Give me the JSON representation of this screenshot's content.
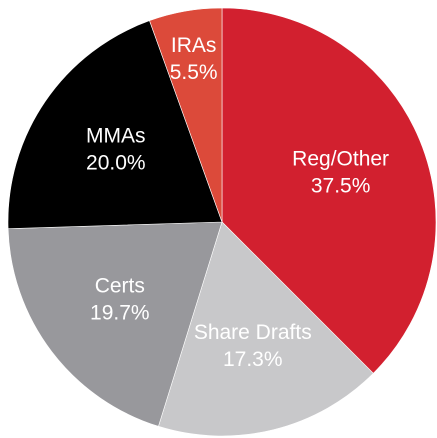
{
  "chart_data": {
    "type": "pie",
    "categories": [
      "Reg/Other",
      "Share Drafts",
      "Certs",
      "MMAs",
      "IRAs"
    ],
    "values": [
      37.5,
      17.3,
      19.7,
      20.0,
      5.5
    ],
    "value_labels": [
      "37.5%",
      "17.3%",
      "19.7%",
      "20.0%",
      "5.5%"
    ],
    "colors": [
      "#d2202f",
      "#c8c8ca",
      "#98989c",
      "#000000",
      "#dc4a3a"
    ]
  }
}
